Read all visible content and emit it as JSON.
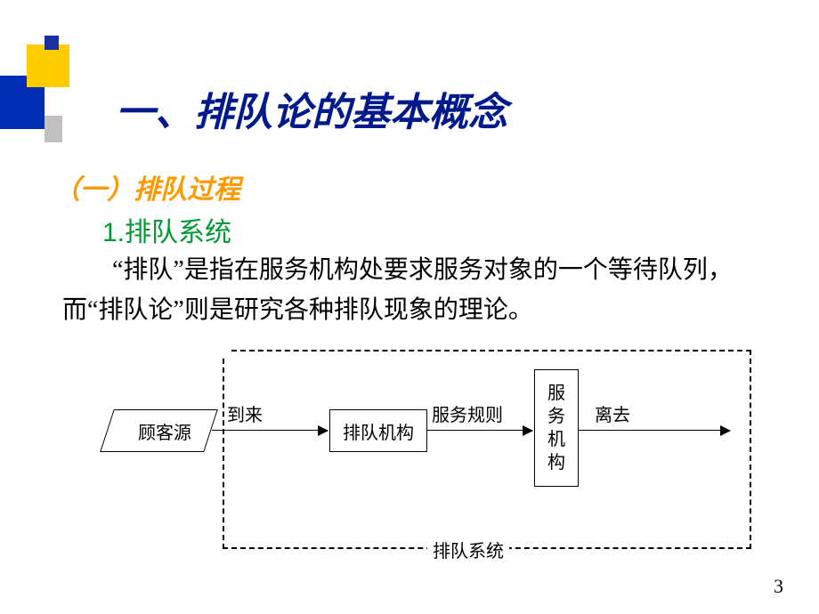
{
  "colors": {
    "title": "#001a8c",
    "subhead": "#ff9900",
    "item": "#009933",
    "deco_blue": "#002db3",
    "deco_yellow": "#ffcc00",
    "deco_blue_sm": "#1a2fa0",
    "shadow": "#c0c0c0",
    "background": "#ffffff",
    "text": "#000000"
  },
  "title": "一、排队论的基本概念",
  "subhead": "（一）排队过程",
  "item": "1.排队系统",
  "body": "　　“排队”是指在服务机构处要求服务对象的一个等待队列，而“排队论”则是研究各种排队现象的理论。",
  "diagram": {
    "type": "flowchart",
    "nodes": {
      "source": {
        "label": "顾客源",
        "shape": "parallelogram"
      },
      "queue": {
        "label": "排队机构",
        "shape": "rect"
      },
      "service": {
        "label": "服\n务\n机\n构",
        "shape": "rect-vertical"
      }
    },
    "edges": [
      {
        "from": "source",
        "to": "queue",
        "label": "到来"
      },
      {
        "from": "queue",
        "to": "service",
        "label": "服务规则"
      },
      {
        "from": "service",
        "to": "out",
        "label": "离去"
      }
    ],
    "system_boundary_label": "排队系统",
    "line_color": "#000000",
    "line_width": 1.5,
    "font_size": 20
  },
  "page_number": "3"
}
